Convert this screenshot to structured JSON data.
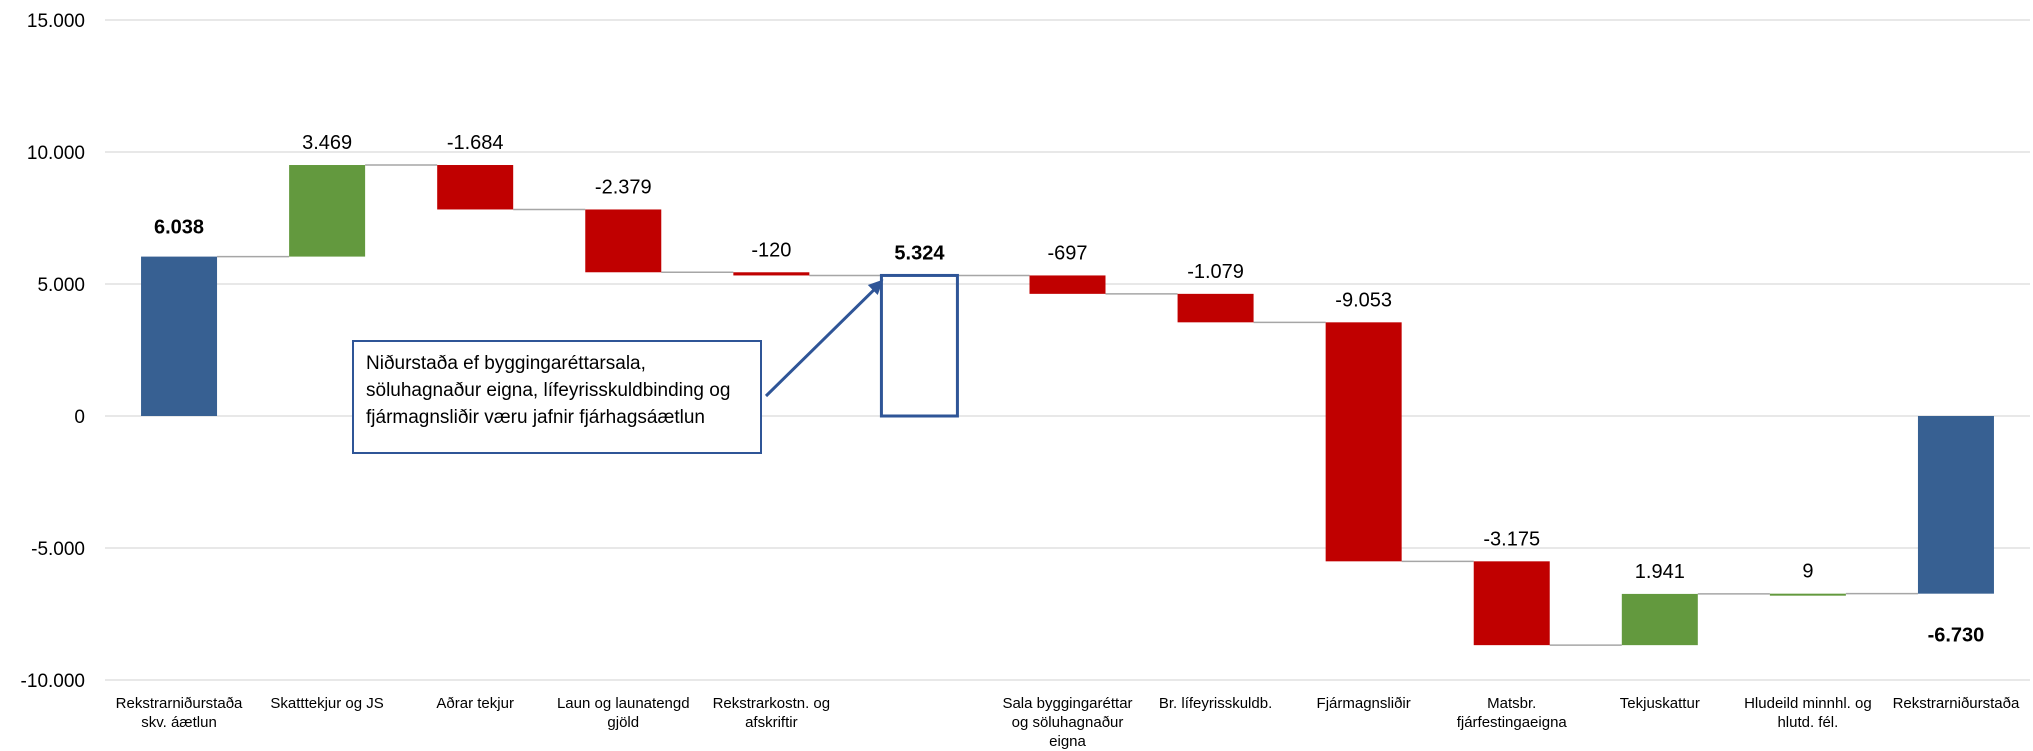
{
  "chart_data": {
    "type": "bar",
    "subtype": "waterfall",
    "title": "",
    "xlabel": "",
    "ylabel": "",
    "ylim": [
      -10000,
      15000
    ],
    "yticks": [
      15000,
      10000,
      5000,
      0,
      -5000,
      -10000
    ],
    "ytick_labels": [
      "15.000",
      "10.000",
      "5.000",
      "0",
      "-5.000",
      "-10.000"
    ],
    "grid": true,
    "legend": "none",
    "colors": {
      "total": "#376092",
      "increase": "#63993e",
      "decrease": "#c00000",
      "outline": "#2f5597",
      "connector": "#a6a6a6",
      "gridline": "#d9d9d9"
    },
    "categories": [
      "Rekstrarniðurstaða skv. áætlun",
      "Skatttekjur og JS",
      "Aðrar tekjur",
      "Laun og launatengd gjöld",
      "Rekstrarkostn. og afskriftir",
      "",
      "Sala byggingaréttar og söluhagnaður eigna",
      "Br. lífeyrisskuldb.",
      "Fjármagnsliðir",
      "Matsbr. fjárfestingaeigna",
      "Tekjuskattur",
      "Hludeild minnhl. og hlutd. fél.",
      "Rekstrarniðurstaða"
    ],
    "category_lines": [
      [
        "Rekstrarniðurstaða",
        "skv. áætlun"
      ],
      [
        "Skatttekjur og JS"
      ],
      [
        "Aðrar tekjur"
      ],
      [
        "Laun og launatengd",
        "gjöld"
      ],
      [
        "Rekstrarkostn. og",
        "afskriftir"
      ],
      [],
      [
        "Sala byggingaréttar",
        "og söluhagnaður",
        "eigna"
      ],
      [
        "Br. lífeyrisskuldb."
      ],
      [
        "Fjármagnsliðir"
      ],
      [
        "Matsbr.",
        "fjárfestingaeigna"
      ],
      [
        "Tekjuskattur"
      ],
      [
        "Hludeild minnhl. og",
        "hlutd. fél."
      ],
      [
        "Rekstrarniðurstaða"
      ]
    ],
    "values": [
      6038,
      3469,
      -1684,
      -2379,
      -120,
      5324,
      -697,
      -1079,
      -9053,
      -3175,
      1941,
      9,
      -6730
    ],
    "kinds": [
      "total",
      "delta",
      "delta",
      "delta",
      "delta",
      "subtotal",
      "delta",
      "delta",
      "delta",
      "delta",
      "delta",
      "delta",
      "total"
    ],
    "value_labels": [
      "6.038",
      "3.469",
      "-1.684",
      "-2.379",
      "-120",
      "5.324",
      "-697",
      "-1.079",
      "-9.053",
      "-3.175",
      "1.941",
      "9",
      "-6.730"
    ],
    "bold_labels": [
      true,
      false,
      false,
      false,
      false,
      true,
      false,
      false,
      false,
      false,
      false,
      false,
      true
    ],
    "annotation": {
      "lines": [
        "Niðurstaða ef byggingaréttarsala,",
        "söluhagnaður eigna, lífeyrisskuldbinding og",
        "fjármagnsliðir væru jafnir fjárhagsáætlun"
      ],
      "points_to_index": 5
    }
  }
}
